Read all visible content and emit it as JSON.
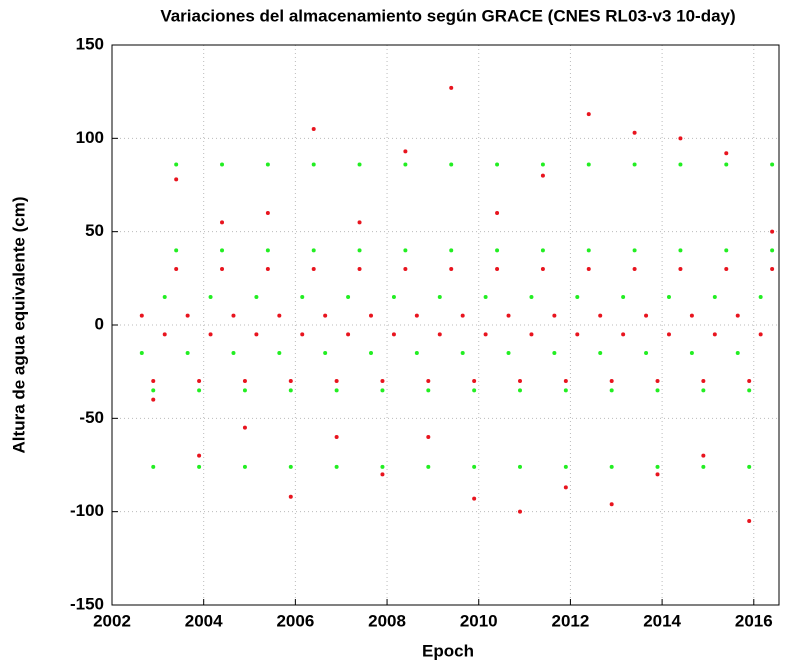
{
  "chart_data": {
    "type": "scatter",
    "title": "Variaciones del almacenamiento según GRACE (CNES RL03-v3 10-day)",
    "x_label": "Epoch",
    "y_label": "Altura de agua equivalente (cm)",
    "xlim": [
      2002,
      2016.55
    ],
    "ylim": [
      -150,
      150
    ],
    "xticks": [
      2002,
      2004,
      2006,
      2008,
      2010,
      2012,
      2014,
      2016
    ],
    "yticks": [
      -150,
      -100,
      -50,
      0,
      50,
      100,
      150
    ],
    "grid": true,
    "series": [
      {
        "color": "#e8141e",
        "x": [
          2002.65,
          2002.9,
          2002.9,
          2003.15,
          2003.4,
          2003.4,
          2003.65,
          2003.9,
          2003.9,
          2004.15,
          2004.4,
          2004.4,
          2004.65,
          2004.9,
          2004.9,
          2005.15,
          2005.4,
          2005.4,
          2005.65,
          2005.9,
          2005.9,
          2006.15,
          2006.4,
          2006.4,
          2006.65,
          2006.9,
          2006.9,
          2007.15,
          2007.4,
          2007.4,
          2007.65,
          2007.9,
          2007.9,
          2008.15,
          2008.4,
          2008.4,
          2008.65,
          2008.9,
          2008.9,
          2009.15,
          2009.4,
          2009.4,
          2009.65,
          2009.9,
          2009.9,
          2010.15,
          2010.4,
          2010.4,
          2010.65,
          2010.9,
          2010.9,
          2011.15,
          2011.4,
          2011.4,
          2011.65,
          2011.9,
          2011.9,
          2012.15,
          2012.4,
          2012.4,
          2012.65,
          2012.9,
          2012.9,
          2013.15,
          2013.4,
          2013.4,
          2013.65,
          2013.9,
          2013.9,
          2014.15,
          2014.4,
          2014.4,
          2014.65,
          2014.9,
          2014.9,
          2015.15,
          2015.4,
          2015.4,
          2015.65,
          2015.9,
          2015.9,
          2016.15,
          2016.4,
          2016.4
        ],
        "values": [
          5,
          -40,
          -30,
          -5,
          78,
          30,
          5,
          -70,
          -30,
          -5,
          55,
          30,
          5,
          -55,
          -30,
          -5,
          60,
          30,
          5,
          -92,
          -30,
          -5,
          105,
          30,
          5,
          -60,
          -30,
          -5,
          55,
          30,
          5,
          -80,
          -30,
          -5,
          93,
          30,
          5,
          -60,
          -30,
          -5,
          127,
          30,
          5,
          -93,
          -30,
          -5,
          60,
          30,
          5,
          -100,
          -30,
          -5,
          80,
          30,
          5,
          -87,
          -30,
          -5,
          113,
          30,
          5,
          -96,
          -30,
          -5,
          103,
          30,
          5,
          -80,
          -30,
          -5,
          100,
          30,
          5,
          -70,
          -30,
          -5,
          92,
          30,
          5,
          -105,
          -30,
          -5,
          50,
          30
        ]
      },
      {
        "color": "#22ee22",
        "x": [
          2002.65,
          2002.9,
          2002.9,
          2003.15,
          2003.4,
          2003.4,
          2003.65,
          2003.9,
          2003.9,
          2004.15,
          2004.4,
          2004.4,
          2004.65,
          2004.9,
          2004.9,
          2005.15,
          2005.4,
          2005.4,
          2005.65,
          2005.9,
          2005.9,
          2006.15,
          2006.4,
          2006.4,
          2006.65,
          2006.9,
          2006.9,
          2007.15,
          2007.4,
          2007.4,
          2007.65,
          2007.9,
          2007.9,
          2008.15,
          2008.4,
          2008.4,
          2008.65,
          2008.9,
          2008.9,
          2009.15,
          2009.4,
          2009.4,
          2009.65,
          2009.9,
          2009.9,
          2010.15,
          2010.4,
          2010.4,
          2010.65,
          2010.9,
          2010.9,
          2011.15,
          2011.4,
          2011.4,
          2011.65,
          2011.9,
          2011.9,
          2012.15,
          2012.4,
          2012.4,
          2012.65,
          2012.9,
          2012.9,
          2013.15,
          2013.4,
          2013.4,
          2013.65,
          2013.9,
          2013.9,
          2014.15,
          2014.4,
          2014.4,
          2014.65,
          2014.9,
          2014.9,
          2015.15,
          2015.4,
          2015.4,
          2015.65,
          2015.9,
          2015.9,
          2016.15,
          2016.4,
          2016.4
        ],
        "values": [
          -15,
          -76,
          -35,
          15,
          86,
          40,
          -15,
          -76,
          -35,
          15,
          86,
          40,
          -15,
          -76,
          -35,
          15,
          86,
          40,
          -15,
          -76,
          -35,
          15,
          86,
          40,
          -15,
          -76,
          -35,
          15,
          86,
          40,
          -15,
          -76,
          -35,
          15,
          86,
          40,
          -15,
          -76,
          -35,
          15,
          86,
          40,
          -15,
          -76,
          -35,
          15,
          86,
          40,
          -15,
          -76,
          -35,
          15,
          86,
          40,
          -15,
          -76,
          -35,
          15,
          86,
          40,
          -15,
          -76,
          -35,
          15,
          86,
          40,
          -15,
          -76,
          -35,
          15,
          86,
          40,
          -15,
          -76,
          -35,
          15,
          86,
          40,
          -15,
          -76,
          -35,
          15,
          86,
          40
        ]
      }
    ]
  }
}
